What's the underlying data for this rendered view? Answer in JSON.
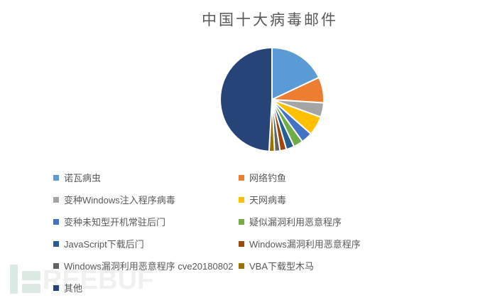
{
  "chart_data": {
    "type": "pie",
    "title": "中国十大病毒邮件",
    "legend_position": "bottom",
    "start_angle_deg": 0,
    "direction": "clockwise",
    "values_are": "percent, estimated from slice angles",
    "slices": [
      {
        "label": "诺瓦病虫",
        "value": 18.0,
        "color": "#5B9BD5"
      },
      {
        "label": "网络钓鱼",
        "value": 8.0,
        "color": "#ED7D31"
      },
      {
        "label": "变种Windows注入程序病毒",
        "value": 4.5,
        "color": "#A5A5A5"
      },
      {
        "label": "天网病毒",
        "value": 6.0,
        "color": "#FFC000"
      },
      {
        "label": "变种未知型开机常驻后门",
        "value": 3.5,
        "color": "#4472C4"
      },
      {
        "label": "疑似漏洞利用恶意程序",
        "value": 3.0,
        "color": "#70AD47"
      },
      {
        "label": "JavaScript下载后门",
        "value": 2.5,
        "color": "#255E91"
      },
      {
        "label": "Windows漏洞利用恶意程序",
        "value": 2.0,
        "color": "#9E480E"
      },
      {
        "label": "Windows漏洞利用恶意程序 cve20180802",
        "value": 1.7,
        "color": "#636363"
      },
      {
        "label": "VBA下载型木马",
        "value": 1.7,
        "color": "#997300"
      },
      {
        "label": "其他",
        "value": 49.1,
        "color": "#264478"
      }
    ]
  },
  "watermark": {
    "text": "REEBUF"
  },
  "style": {
    "title_color": "#595959",
    "legend_text_color": "#595959",
    "slice_border_color": "#ffffff",
    "watermark_mark_color": "#dde9e3",
    "watermark_text_color": "#f0f0ee"
  }
}
